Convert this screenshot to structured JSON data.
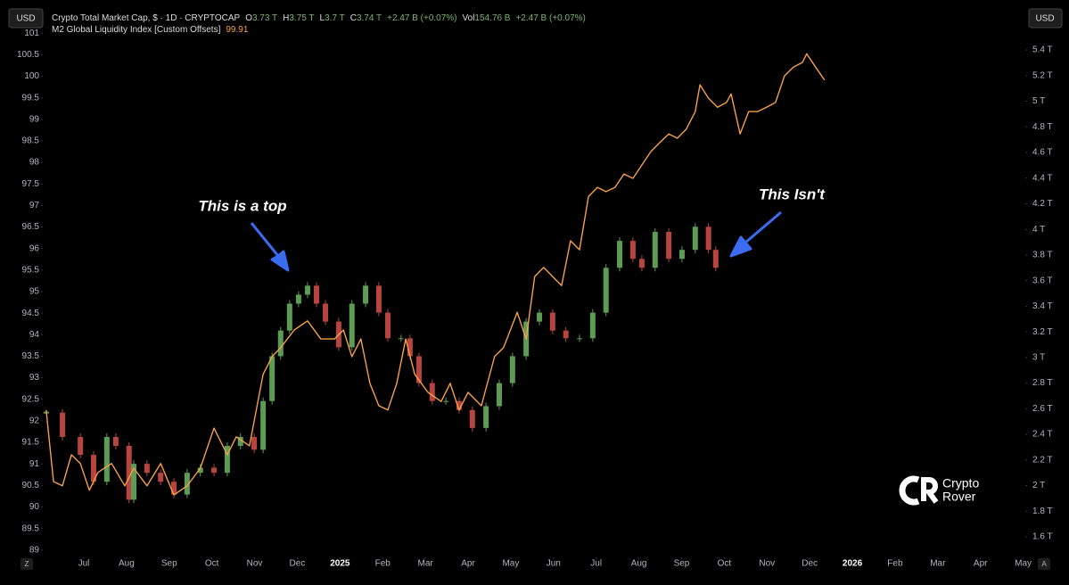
{
  "ui": {
    "currency_left": "USD",
    "currency_right": "USD",
    "corner_left": "Z",
    "corner_right": "A"
  },
  "legend": {
    "o_label": "O",
    "o": "3.73 T",
    "h_label": "H",
    "h": "3.75 T",
    "l_label": "L",
    "l": "3.7 T",
    "c_label": "C",
    "c": "3.74 T",
    "change": "+2.47 B (+0.07%)",
    "vol_label": "Vol",
    "vol": "154.76 B",
    "vol_change": "+2.47 B (+0.07%)",
    "m2_last": 99.91
  },
  "annotations": [
    "This is a top",
    "This Isn't"
  ],
  "watermark": [
    "Crypto",
    "Rover"
  ],
  "chart_data": {
    "type": "combo",
    "xlim": [
      -0.96,
      22.05
    ],
    "xticks": [
      {
        "value": 0,
        "label": "Jul"
      },
      {
        "value": 1,
        "label": "Aug"
      },
      {
        "value": 2,
        "label": "Sep"
      },
      {
        "value": 3,
        "label": "Oct"
      },
      {
        "value": 4,
        "label": "Nov"
      },
      {
        "value": 5,
        "label": "Dec"
      },
      {
        "value": 6,
        "label": "2025"
      },
      {
        "value": 7,
        "label": "Feb"
      },
      {
        "value": 8,
        "label": "Mar"
      },
      {
        "value": 9,
        "label": "Apr"
      },
      {
        "value": 10,
        "label": "May"
      },
      {
        "value": 11,
        "label": "Jun"
      },
      {
        "value": 12,
        "label": "Jul"
      },
      {
        "value": 13,
        "label": "Aug"
      },
      {
        "value": 14,
        "label": "Sep"
      },
      {
        "value": 15,
        "label": "Oct"
      },
      {
        "value": 16,
        "label": "Nov"
      },
      {
        "value": 17,
        "label": "Dec"
      },
      {
        "value": 18,
        "label": "2026"
      },
      {
        "value": 19,
        "label": "Feb"
      },
      {
        "value": 20,
        "label": "Mar"
      },
      {
        "value": 21,
        "label": "Apr"
      },
      {
        "value": 22,
        "label": "May"
      }
    ],
    "ylim": [
      88.83,
      101.19
    ],
    "yticks": [
      89,
      89.5,
      90,
      90.5,
      91,
      91.5,
      92,
      92.5,
      93,
      93.5,
      94,
      94.5,
      95,
      95.5,
      96,
      96.5,
      97,
      97.5,
      98,
      98.5,
      99,
      99.5,
      100,
      100.5,
      101
    ],
    "y2lim": [
      1.44,
      5.595
    ],
    "y2ticks": [
      {
        "value": 1.6,
        "label": "1.6 T"
      },
      {
        "value": 1.8,
        "label": "1.8 T"
      },
      {
        "value": 2,
        "label": "2 T"
      },
      {
        "value": 2.2,
        "label": "2.2 T"
      },
      {
        "value": 2.4,
        "label": "2.4 T"
      },
      {
        "value": 2.6,
        "label": "2.6 T"
      },
      {
        "value": 2.8,
        "label": "2.8 T"
      },
      {
        "value": 3,
        "label": "3 T"
      },
      {
        "value": 3.2,
        "label": "3.2 T"
      },
      {
        "value": 3.4,
        "label": "3.4 T"
      },
      {
        "value": 3.6,
        "label": "3.6 T"
      },
      {
        "value": 3.8,
        "label": "3.8 T"
      },
      {
        "value": 4,
        "label": "4 T"
      },
      {
        "value": 4.2,
        "label": "4.2 T"
      },
      {
        "value": 4.4,
        "label": "4.4 T"
      },
      {
        "value": 4.6,
        "label": "4.6 T"
      },
      {
        "value": 4.8,
        "label": "4.8 T"
      },
      {
        "value": 5,
        "label": "5 T"
      },
      {
        "value": 5.2,
        "label": "5.2 T"
      },
      {
        "value": 5.4,
        "label": "5.4 T"
      }
    ],
    "series": [
      {
        "name": "Crypto Total Market Cap, $ · 1D · CRYPTOCAP",
        "type": "candlestick",
        "axis": "y2",
        "up_color": "#5e9c55",
        "down_color": "#b8443f",
        "x": [
          -0.88,
          -0.5,
          -0.08,
          0.23,
          0.54,
          0.75,
          1.06,
          1.17,
          1.48,
          1.8,
          2.11,
          2.42,
          2.73,
          3.05,
          3.36,
          3.67,
          3.99,
          4.2,
          4.41,
          4.61,
          4.82,
          5.03,
          5.24,
          5.45,
          5.66,
          5.97,
          6.28,
          6.6,
          6.91,
          7.12,
          7.43,
          7.64,
          7.85,
          8.16,
          8.48,
          8.79,
          9.1,
          9.42,
          9.73,
          10.04,
          10.36,
          10.67,
          10.98,
          11.29,
          11.61,
          11.92,
          12.23,
          12.55,
          12.86,
          13.07,
          13.38,
          13.7,
          14.01,
          14.32,
          14.63,
          14.8
        ],
        "values": [
          2.57,
          2.38,
          2.24,
          2.03,
          2.38,
          2.31,
          1.89,
          2.17,
          2.1,
          2.03,
          1.93,
          2.1,
          2.14,
          2.1,
          2.31,
          2.38,
          2.28,
          2.66,
          3.01,
          3.21,
          3.42,
          3.49,
          3.56,
          3.42,
          3.28,
          3.08,
          3.42,
          3.56,
          3.35,
          3.15,
          3.15,
          3.01,
          2.8,
          2.66,
          2.66,
          2.59,
          2.45,
          2.62,
          2.8,
          3.01,
          3.28,
          3.35,
          3.21,
          3.15,
          3.15,
          3.35,
          3.7,
          3.91,
          3.77,
          3.7,
          3.98,
          3.77,
          3.84,
          4.02,
          3.84,
          3.7
        ]
      },
      {
        "name": "M2 Global Liquidity Index [Custom Offsets]",
        "type": "line",
        "axis": "y",
        "color": "#f5a04a",
        "x": [
          -0.88,
          -0.71,
          -0.5,
          -0.29,
          -0.08,
          0.13,
          0.33,
          0.65,
          0.96,
          1.17,
          1.48,
          1.8,
          2.11,
          2.42,
          2.73,
          3.05,
          3.36,
          3.57,
          3.88,
          4.2,
          4.41,
          4.61,
          4.93,
          5.24,
          5.55,
          5.87,
          6.08,
          6.28,
          6.49,
          6.7,
          6.91,
          7.12,
          7.33,
          7.54,
          7.75,
          8.06,
          8.37,
          8.58,
          8.79,
          9.0,
          9.31,
          9.62,
          9.83,
          10.15,
          10.36,
          10.56,
          10.77,
          10.98,
          11.19,
          11.4,
          11.61,
          11.82,
          12.03,
          12.23,
          12.44,
          12.65,
          12.86,
          13.07,
          13.28,
          13.49,
          13.7,
          13.9,
          14.11,
          14.32,
          14.43,
          14.63,
          14.84,
          15.05,
          15.16,
          15.37,
          15.57,
          15.78,
          15.99,
          16.2,
          16.41,
          16.62,
          16.83,
          16.93,
          17.14,
          17.35
        ],
        "values": [
          92.25,
          90.59,
          90.49,
          91.21,
          91.01,
          90.39,
          90.8,
          91.01,
          90.49,
          90.9,
          90.49,
          91.01,
          90.28,
          90.49,
          90.9,
          91.83,
          91.21,
          91.63,
          91.42,
          93.08,
          93.49,
          93.7,
          94.11,
          94.32,
          93.9,
          93.9,
          94.11,
          93.49,
          93.9,
          92.87,
          92.35,
          92.25,
          92.87,
          93.9,
          93.08,
          92.66,
          92.45,
          92.87,
          92.25,
          92.66,
          92.35,
          93.49,
          93.7,
          94.52,
          93.9,
          95.35,
          95.56,
          95.35,
          95.14,
          96.18,
          95.97,
          97.21,
          97.42,
          97.32,
          97.42,
          97.73,
          97.63,
          97.94,
          98.25,
          98.46,
          98.66,
          98.56,
          98.77,
          99.18,
          99.8,
          99.49,
          99.28,
          99.39,
          99.59,
          98.66,
          99.18,
          99.18,
          99.28,
          99.39,
          100.01,
          100.21,
          100.32,
          100.52,
          100.21,
          99.91
        ]
      }
    ]
  }
}
